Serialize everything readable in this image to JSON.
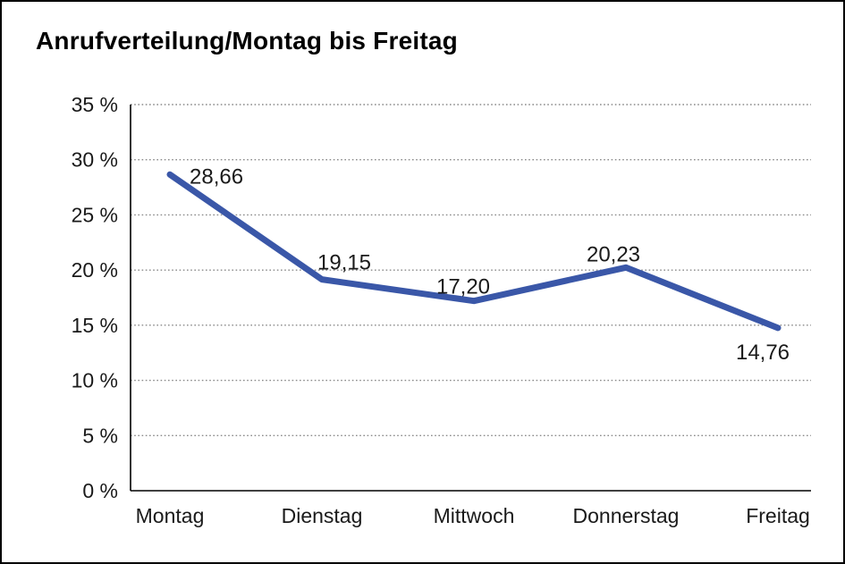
{
  "chart_data": {
    "type": "line",
    "title": "Anrufverteilung/Montag bis Freitag",
    "categories": [
      "Montag",
      "Dienstag",
      "Mittwoch",
      "Donnerstag",
      "Freitag"
    ],
    "series": [
      {
        "name": "Anrufverteilung",
        "values": [
          28.66,
          19.15,
          17.2,
          20.23,
          14.76
        ]
      }
    ],
    "data_labels": [
      "28,66",
      "19,15",
      "17,20",
      "20,23",
      "14,76"
    ],
    "xlabel": "",
    "ylabel": "",
    "ylim": [
      0,
      35
    ],
    "y_tick_step": 5,
    "y_tick_labels": [
      "0 %",
      "5 %",
      "10 %",
      "15 %",
      "20 %",
      "25 %",
      "30 %",
      "35 %"
    ],
    "grid": "horizontal-dotted",
    "legend_position": "none",
    "colors": {
      "line": "#3A57A8",
      "grid": "#8a8a8a",
      "axis": "#000000",
      "text": "#1a1a1a",
      "frame": "#000000",
      "background": "#ffffff"
    }
  }
}
